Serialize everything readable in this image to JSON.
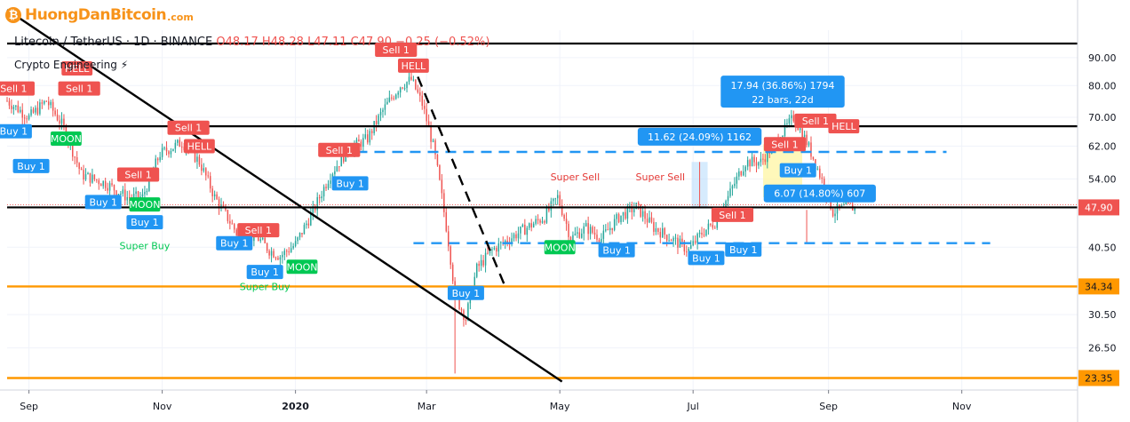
{
  "logo": {
    "text": "HuongDanBitcoin",
    "domain": ".com",
    "icon": "bitcoin-icon",
    "color": "#f7931a"
  },
  "header": {
    "symbol": "Litecoin / TetherUS · 1D · BINANCE",
    "o_label": "O",
    "o": "48.17",
    "h_label": "H",
    "h": "48.28",
    "l_label": "L",
    "l": "47.11",
    "c_label": "C",
    "c": "47.90",
    "change": "−0.25 (−0.52%)",
    "indicator": "Crypto Engineering ⚡"
  },
  "chart_data": {
    "type": "candlestick",
    "y_scale": "log",
    "ylim": [
      22.2,
      101
    ],
    "x_ticks": [
      {
        "label": "Sep",
        "day": 10
      },
      {
        "label": "Nov",
        "day": 71
      },
      {
        "label": "2020",
        "day": 132
      },
      {
        "label": "Mar",
        "day": 192
      },
      {
        "label": "May",
        "day": 253
      },
      {
        "label": "Jul",
        "day": 314
      },
      {
        "label": "Sep",
        "day": 376
      },
      {
        "label": "Nov",
        "day": 437
      }
    ],
    "y_ticks": [
      "90.00",
      "80.00",
      "70.00",
      "62.00",
      "54.00",
      "47.90",
      "40.50",
      "34.34",
      "30.50",
      "26.50",
      "23.35"
    ],
    "price_labels": [
      {
        "value": 47.9,
        "text": "47.90",
        "color": "#ef5350"
      },
      {
        "value": 34.34,
        "text": "34.34",
        "color": "#ff9800"
      },
      {
        "value": 23.35,
        "text": "23.35",
        "color": "#ff9800"
      }
    ],
    "price_path": [
      [
        0,
        75
      ],
      [
        10,
        70
      ],
      [
        18,
        75
      ],
      [
        25,
        68
      ],
      [
        34,
        55
      ],
      [
        45,
        53
      ],
      [
        55,
        50
      ],
      [
        62,
        50
      ],
      [
        70,
        60
      ],
      [
        80,
        63
      ],
      [
        88,
        58
      ],
      [
        95,
        50
      ],
      [
        105,
        43
      ],
      [
        115,
        42
      ],
      [
        120,
        40
      ],
      [
        125,
        39
      ],
      [
        132,
        41
      ],
      [
        140,
        47
      ],
      [
        148,
        55
      ],
      [
        156,
        61
      ],
      [
        165,
        64
      ],
      [
        172,
        72
      ],
      [
        180,
        80
      ],
      [
        185,
        82
      ],
      [
        190,
        74
      ],
      [
        195,
        62
      ],
      [
        200,
        47
      ],
      [
        205,
        33
      ],
      [
        210,
        30
      ],
      [
        215,
        37
      ],
      [
        222,
        40
      ],
      [
        230,
        42
      ],
      [
        238,
        44
      ],
      [
        246,
        46
      ],
      [
        252,
        50
      ],
      [
        258,
        42
      ],
      [
        265,
        44
      ],
      [
        272,
        42
      ],
      [
        280,
        46
      ],
      [
        288,
        48
      ],
      [
        296,
        44
      ],
      [
        304,
        42
      ],
      [
        312,
        40
      ],
      [
        318,
        43
      ],
      [
        324,
        45
      ],
      [
        330,
        50
      ],
      [
        338,
        58
      ],
      [
        345,
        58
      ],
      [
        352,
        63
      ],
      [
        360,
        70
      ],
      [
        366,
        63
      ],
      [
        372,
        55
      ],
      [
        378,
        47
      ],
      [
        384,
        48
      ],
      [
        388,
        47.9
      ]
    ],
    "horizontal_lines": [
      {
        "value": 95.5,
        "style": "solid",
        "color": "#000000"
      },
      {
        "value": 67.4,
        "style": "solid",
        "color": "#000000"
      },
      {
        "value": 47.9,
        "style": "solid",
        "color": "#000000"
      },
      {
        "value": 34.34,
        "style": "solid",
        "color": "#ff9800"
      },
      {
        "value": 23.35,
        "style": "solid",
        "color": "#ff9800"
      }
    ],
    "dashed_segments": [
      {
        "from": [
          160,
          60.5
        ],
        "to": [
          430,
          60.5
        ],
        "color": "#2196f3"
      },
      {
        "from": [
          186,
          41.2
        ],
        "to": [
          450,
          41.2
        ],
        "color": "#2196f3"
      }
    ],
    "trend_lines": [
      {
        "from": [
          0,
          110
        ],
        "to": [
          254,
          23.0
        ],
        "style": "solid"
      },
      {
        "from": [
          188,
          83
        ],
        "to": [
          228,
          34.3
        ],
        "style": "dashed"
      }
    ],
    "signals": [
      {
        "text": "Sell 1",
        "type": "sell",
        "day": 3,
        "price": 79
      },
      {
        "text": "HELL",
        "type": "hell",
        "day": 32,
        "price": 86
      },
      {
        "text": "Sell 1",
        "type": "sell",
        "day": 33,
        "price": 79
      },
      {
        "text": "Buy 1",
        "type": "buy",
        "day": 3,
        "price": 66
      },
      {
        "text": "Buy 1",
        "type": "buy",
        "day": 11,
        "price": 57
      },
      {
        "text": "MOON",
        "type": "moon",
        "day": 27,
        "price": 64
      },
      {
        "text": "Sell 1",
        "type": "sell",
        "day": 83,
        "price": 67
      },
      {
        "text": "HELL",
        "type": "hell",
        "day": 88,
        "price": 62
      },
      {
        "text": "Sell 1",
        "type": "sell",
        "day": 60,
        "price": 55
      },
      {
        "text": "Buy 1",
        "type": "buy",
        "day": 44,
        "price": 49
      },
      {
        "text": "MOON",
        "type": "moon",
        "day": 63,
        "price": 48.5
      },
      {
        "text": "Buy 1",
        "type": "buy",
        "day": 63,
        "price": 45
      },
      {
        "text": "Super Buy",
        "type": "superbuy",
        "day": 63,
        "price": 40.2
      },
      {
        "text": "Sell 1",
        "type": "sell",
        "day": 115,
        "price": 43.5
      },
      {
        "text": "Buy 1",
        "type": "buy",
        "day": 104,
        "price": 41.2
      },
      {
        "text": "Buy 1",
        "type": "buy",
        "day": 118,
        "price": 36.5
      },
      {
        "text": "MOON",
        "type": "moon",
        "day": 135,
        "price": 37.3
      },
      {
        "text": "Super Buy",
        "type": "superbuy",
        "day": 118,
        "price": 33.8
      },
      {
        "text": "Sell 1",
        "type": "sell",
        "day": 152,
        "price": 61
      },
      {
        "text": "Buy 1",
        "type": "buy",
        "day": 157,
        "price": 53
      },
      {
        "text": "Sell 1",
        "type": "sell",
        "day": 178,
        "price": 93
      },
      {
        "text": "HELL",
        "type": "hell",
        "day": 186,
        "price": 87
      },
      {
        "text": "Buy 1",
        "type": "buy",
        "day": 210,
        "price": 33.4
      },
      {
        "text": "Super Sell",
        "type": "supersell",
        "day": 260,
        "price": 53.7
      },
      {
        "text": "MOON",
        "type": "moon",
        "day": 253,
        "price": 40.5
      },
      {
        "text": "Buy 1",
        "type": "buy",
        "day": 279,
        "price": 40
      },
      {
        "text": "Super Sell",
        "type": "supersell",
        "day": 299,
        "price": 53.7
      },
      {
        "text": "Buy 1",
        "type": "buy",
        "day": 320,
        "price": 38.7
      },
      {
        "text": "Sell 1",
        "type": "sell",
        "day": 332,
        "price": 46.4
      },
      {
        "text": "Buy 1",
        "type": "buy",
        "day": 337,
        "price": 40.1
      },
      {
        "text": "Sell 1",
        "type": "sell",
        "day": 356,
        "price": 62.5
      },
      {
        "text": "Buy 1",
        "type": "buy",
        "day": 362,
        "price": 56
      },
      {
        "text": "Sell 1",
        "type": "sell",
        "day": 370,
        "price": 69
      },
      {
        "text": "HELL",
        "type": "hell",
        "day": 383,
        "price": 67.4
      }
    ],
    "measurements": [
      {
        "line1": "17.94 (36.86%) 1794",
        "line2": "22 bars, 22d",
        "day": 355,
        "price": 78
      },
      {
        "line1": "11.62 (24.09%) 1162",
        "line2": "",
        "day": 317,
        "price": 64.5
      },
      {
        "line1": "6.07 (14.80%) 607",
        "line2": "",
        "day": 372,
        "price": 50.8
      }
    ]
  },
  "colors": {
    "up": "#26a69a",
    "down": "#ef5350",
    "sell": "#ef5350",
    "buy": "#2196f3",
    "moon": "#00c853",
    "measure": "#2196f3",
    "orange": "#ff9800"
  }
}
